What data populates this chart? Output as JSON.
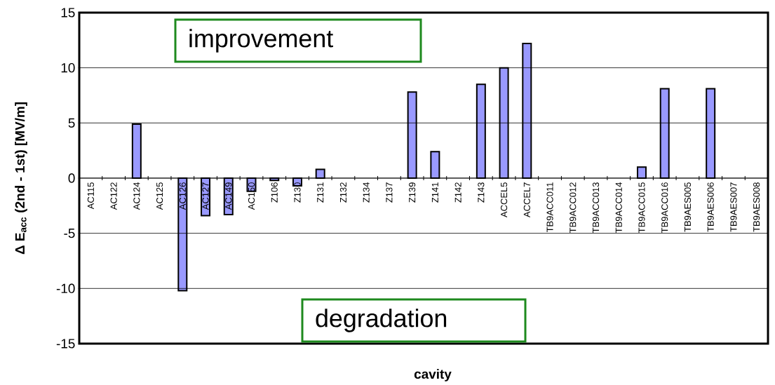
{
  "chart_data": {
    "type": "bar",
    "categories": [
      "AC115",
      "AC122",
      "AC124",
      "AC125",
      "AC126",
      "AC127",
      "AC149",
      "AC150",
      "Z106",
      "Z130",
      "Z131",
      "Z132",
      "Z134",
      "Z137",
      "Z139",
      "Z141",
      "Z142",
      "Z143",
      "ACCEL5",
      "ACCEL7",
      "TB9ACC011",
      "TB9ACC012",
      "TB9ACC013",
      "TB9ACC014",
      "TB9ACC015",
      "TB9ACC016",
      "TB9AES005",
      "TB9AES006",
      "TB9AES007",
      "TB9AES008"
    ],
    "values": [
      null,
      null,
      4.9,
      null,
      -10.2,
      -3.4,
      -3.3,
      -1.2,
      -0.2,
      -0.7,
      0.8,
      null,
      null,
      null,
      7.8,
      2.4,
      null,
      8.5,
      10.0,
      12.2,
      null,
      null,
      null,
      null,
      1.0,
      8.1,
      null,
      8.1,
      null,
      null
    ],
    "color": "#9999ff",
    "xlabel": "cavity",
    "ylabel": "Δ E$_{acc}$ (2nd - 1st) [MV/m]",
    "ylim": [
      -15,
      15
    ],
    "yticks": [
      -15,
      -10,
      -5,
      0,
      5,
      10,
      15
    ],
    "grid": "y",
    "annotations": [
      "improvement",
      "degradation"
    ]
  }
}
